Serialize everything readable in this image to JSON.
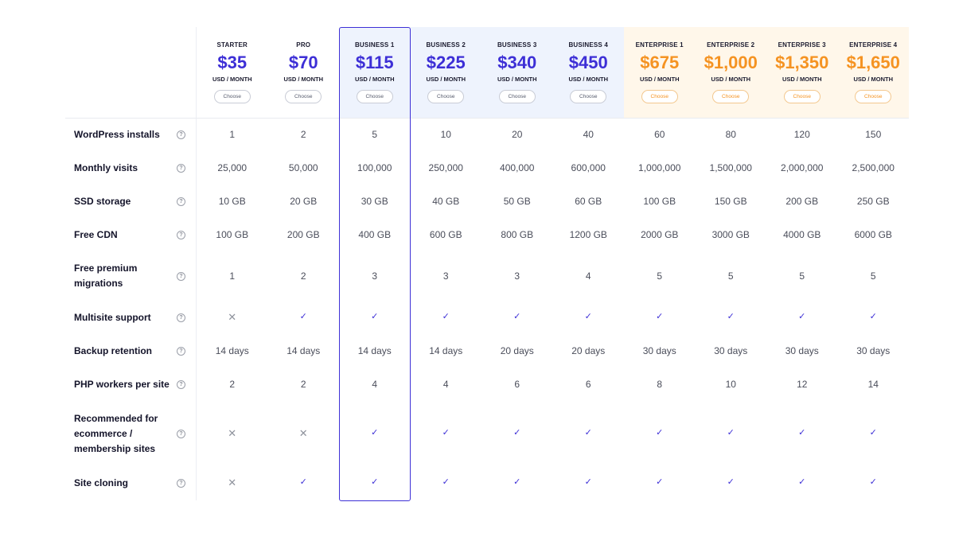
{
  "colors": {
    "accent_blue": "#3d2fd6",
    "accent_orange": "#f59322",
    "business_bg": "#eef3fd",
    "enterprise_bg": "#fff7ea"
  },
  "plans": [
    {
      "name": "STARTER",
      "price": "$35",
      "unit": "USD / MONTH",
      "button": "Choose",
      "tier": "standard"
    },
    {
      "name": "PRO",
      "price": "$70",
      "unit": "USD / MONTH",
      "button": "Choose",
      "tier": "standard"
    },
    {
      "name": "BUSINESS 1",
      "price": "$115",
      "unit": "USD / MONTH",
      "button": "Choose",
      "tier": "business"
    },
    {
      "name": "BUSINESS 2",
      "price": "$225",
      "unit": "USD / MONTH",
      "button": "Choose",
      "tier": "business"
    },
    {
      "name": "BUSINESS 3",
      "price": "$340",
      "unit": "USD / MONTH",
      "button": "Choose",
      "tier": "business"
    },
    {
      "name": "BUSINESS 4",
      "price": "$450",
      "unit": "USD / MONTH",
      "button": "Choose",
      "tier": "business"
    },
    {
      "name": "ENTERPRISE 1",
      "price": "$675",
      "unit": "USD / MONTH",
      "button": "Choose",
      "tier": "enterprise"
    },
    {
      "name": "ENTERPRISE 2",
      "price": "$1,000",
      "unit": "USD / MONTH",
      "button": "Choose",
      "tier": "enterprise"
    },
    {
      "name": "ENTERPRISE 3",
      "price": "$1,350",
      "unit": "USD / MONTH",
      "button": "Choose",
      "tier": "enterprise"
    },
    {
      "name": "ENTERPRISE 4",
      "price": "$1,650",
      "unit": "USD / MONTH",
      "button": "Choose",
      "tier": "enterprise"
    }
  ],
  "features": [
    {
      "label": "WordPress installs",
      "values": [
        "1",
        "2",
        "5",
        "10",
        "20",
        "40",
        "60",
        "80",
        "120",
        "150"
      ]
    },
    {
      "label": "Monthly visits",
      "values": [
        "25,000",
        "50,000",
        "100,000",
        "250,000",
        "400,000",
        "600,000",
        "1,000,000",
        "1,500,000",
        "2,000,000",
        "2,500,000"
      ]
    },
    {
      "label": "SSD storage",
      "values": [
        "10 GB",
        "20 GB",
        "30 GB",
        "40 GB",
        "50 GB",
        "60 GB",
        "100 GB",
        "150 GB",
        "200 GB",
        "250 GB"
      ]
    },
    {
      "label": "Free CDN",
      "values": [
        "100 GB",
        "200 GB",
        "400 GB",
        "600 GB",
        "800 GB",
        "1200 GB",
        "2000 GB",
        "3000 GB",
        "4000 GB",
        "6000 GB"
      ]
    },
    {
      "label": "Free premium migrations",
      "values": [
        "1",
        "2",
        "3",
        "3",
        "3",
        "4",
        "5",
        "5",
        "5",
        "5"
      ]
    },
    {
      "label": "Multisite support",
      "values": [
        "cross",
        "check",
        "check",
        "check",
        "check",
        "check",
        "check",
        "check",
        "check",
        "check"
      ]
    },
    {
      "label": "Backup retention",
      "values": [
        "14 days",
        "14 days",
        "14 days",
        "14 days",
        "20 days",
        "20 days",
        "30 days",
        "30 days",
        "30 days",
        "30 days"
      ]
    },
    {
      "label": "PHP workers per site",
      "values": [
        "2",
        "2",
        "4",
        "4",
        "6",
        "6",
        "8",
        "10",
        "12",
        "14"
      ]
    },
    {
      "label": "Recommended for ecommerce / membership sites",
      "values": [
        "cross",
        "cross",
        "check",
        "check",
        "check",
        "check",
        "check",
        "check",
        "check",
        "check"
      ]
    },
    {
      "label": "Site cloning",
      "values": [
        "cross",
        "check",
        "check",
        "check",
        "check",
        "check",
        "check",
        "check",
        "check",
        "check"
      ]
    }
  ],
  "icons": {
    "help": "question-circle-icon",
    "check": "check-icon",
    "cross": "cross-icon"
  }
}
